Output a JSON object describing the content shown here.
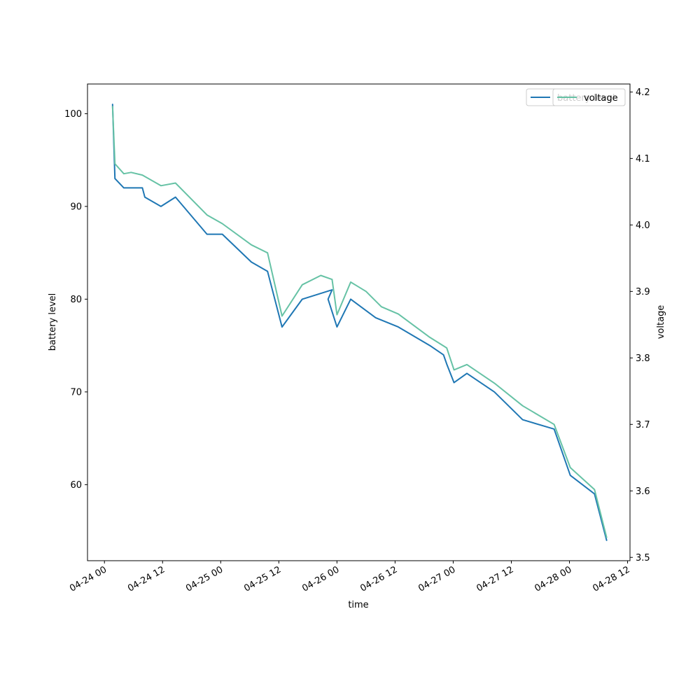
{
  "chart_data": {
    "type": "line",
    "xlabel": "time",
    "ylabel_left": "battery level",
    "ylabel_right": "voltage",
    "x_ticks": [
      "04-24 00",
      "04-24 12",
      "04-25 00",
      "04-25 12",
      "04-26 00",
      "04-26 12",
      "04-27 00",
      "04-27 12",
      "04-28 00",
      "04-28 12"
    ],
    "x_tick_times": [
      "2024-04-24T00:00",
      "2024-04-24T12:00",
      "2024-04-25T00:00",
      "2024-04-25T12:00",
      "2024-04-26T00:00",
      "2024-04-26T12:00",
      "2024-04-27T00:00",
      "2024-04-27T12:00",
      "2024-04-28T00:00",
      "2024-04-28T12:00"
    ],
    "xlim": [
      "2024-04-23T20:30",
      "2024-04-28T12:30"
    ],
    "ylim_left": [
      51.8,
      103.2
    ],
    "y_ticks_left": [
      60,
      70,
      80,
      90,
      100
    ],
    "ylim_right": [
      3.495,
      4.212
    ],
    "y_ticks_right": [
      3.5,
      3.6,
      3.7,
      3.8,
      3.9,
      4.0,
      4.1,
      4.2
    ],
    "grid": false,
    "legend_position": "top-right",
    "series": [
      {
        "name": "battery level",
        "axis": "left",
        "color": "#1f77b4",
        "points": [
          [
            "2024-04-24T01:40",
            101
          ],
          [
            "2024-04-24T02:10",
            93
          ],
          [
            "2024-04-24T04:00",
            92
          ],
          [
            "2024-04-24T07:50",
            92
          ],
          [
            "2024-04-24T08:20",
            91
          ],
          [
            "2024-04-24T11:40",
            90
          ],
          [
            "2024-04-24T14:40",
            91
          ],
          [
            "2024-04-24T21:10",
            87
          ],
          [
            "2024-04-25T00:20",
            87
          ],
          [
            "2024-04-25T06:20",
            84
          ],
          [
            "2024-04-25T09:40",
            83
          ],
          [
            "2024-04-25T12:40",
            77
          ],
          [
            "2024-04-25T16:50",
            80
          ],
          [
            "2024-04-25T23:00",
            81
          ],
          [
            "2024-04-25T22:10",
            80
          ],
          [
            "2024-04-26T00:00",
            77
          ],
          [
            "2024-04-26T02:50",
            80
          ],
          [
            "2024-04-26T08:00",
            78
          ],
          [
            "2024-04-26T12:40",
            77
          ],
          [
            "2024-04-26T19:10",
            75
          ],
          [
            "2024-04-26T22:00",
            74
          ],
          [
            "2024-04-26T22:40",
            73
          ],
          [
            "2024-04-27T00:10",
            71
          ],
          [
            "2024-04-27T02:50",
            72
          ],
          [
            "2024-04-27T08:30",
            70
          ],
          [
            "2024-04-27T14:20",
            67
          ],
          [
            "2024-04-27T20:50",
            66
          ],
          [
            "2024-04-28T00:10",
            61
          ],
          [
            "2024-04-28T05:10",
            59
          ],
          [
            "2024-04-28T07:40",
            54
          ]
        ]
      },
      {
        "name": "voltage",
        "axis": "right",
        "color": "#66c2a5",
        "points": [
          [
            "2024-04-24T01:40",
            4.178
          ],
          [
            "2024-04-24T02:10",
            4.092
          ],
          [
            "2024-04-24T04:00",
            4.077
          ],
          [
            "2024-04-24T05:30",
            4.079
          ],
          [
            "2024-04-24T07:50",
            4.075
          ],
          [
            "2024-04-24T11:40",
            4.059
          ],
          [
            "2024-04-24T14:40",
            4.063
          ],
          [
            "2024-04-24T21:10",
            4.015
          ],
          [
            "2024-04-25T00:20",
            4.002
          ],
          [
            "2024-04-25T06:20",
            3.97
          ],
          [
            "2024-04-25T09:40",
            3.958
          ],
          [
            "2024-04-25T12:40",
            3.863
          ],
          [
            "2024-04-25T16:50",
            3.91
          ],
          [
            "2024-04-25T20:40",
            3.924
          ],
          [
            "2024-04-25T23:00",
            3.918
          ],
          [
            "2024-04-26T00:00",
            3.865
          ],
          [
            "2024-04-26T02:50",
            3.914
          ],
          [
            "2024-04-26T06:00",
            3.9
          ],
          [
            "2024-04-26T09:10",
            3.877
          ],
          [
            "2024-04-26T12:40",
            3.866
          ],
          [
            "2024-04-26T19:10",
            3.831
          ],
          [
            "2024-04-26T22:40",
            3.815
          ],
          [
            "2024-04-27T00:10",
            3.782
          ],
          [
            "2024-04-27T02:50",
            3.79
          ],
          [
            "2024-04-27T08:30",
            3.762
          ],
          [
            "2024-04-27T14:20",
            3.728
          ],
          [
            "2024-04-27T20:50",
            3.7
          ],
          [
            "2024-04-28T00:10",
            3.635
          ],
          [
            "2024-04-28T05:10",
            3.602
          ],
          [
            "2024-04-28T07:40",
            3.53
          ]
        ]
      }
    ],
    "legend_left": [
      {
        "label": "battery level",
        "color": "#1f77b4"
      }
    ],
    "legend_right": [
      {
        "label": "voltage",
        "color": "#66c2a5"
      }
    ]
  }
}
